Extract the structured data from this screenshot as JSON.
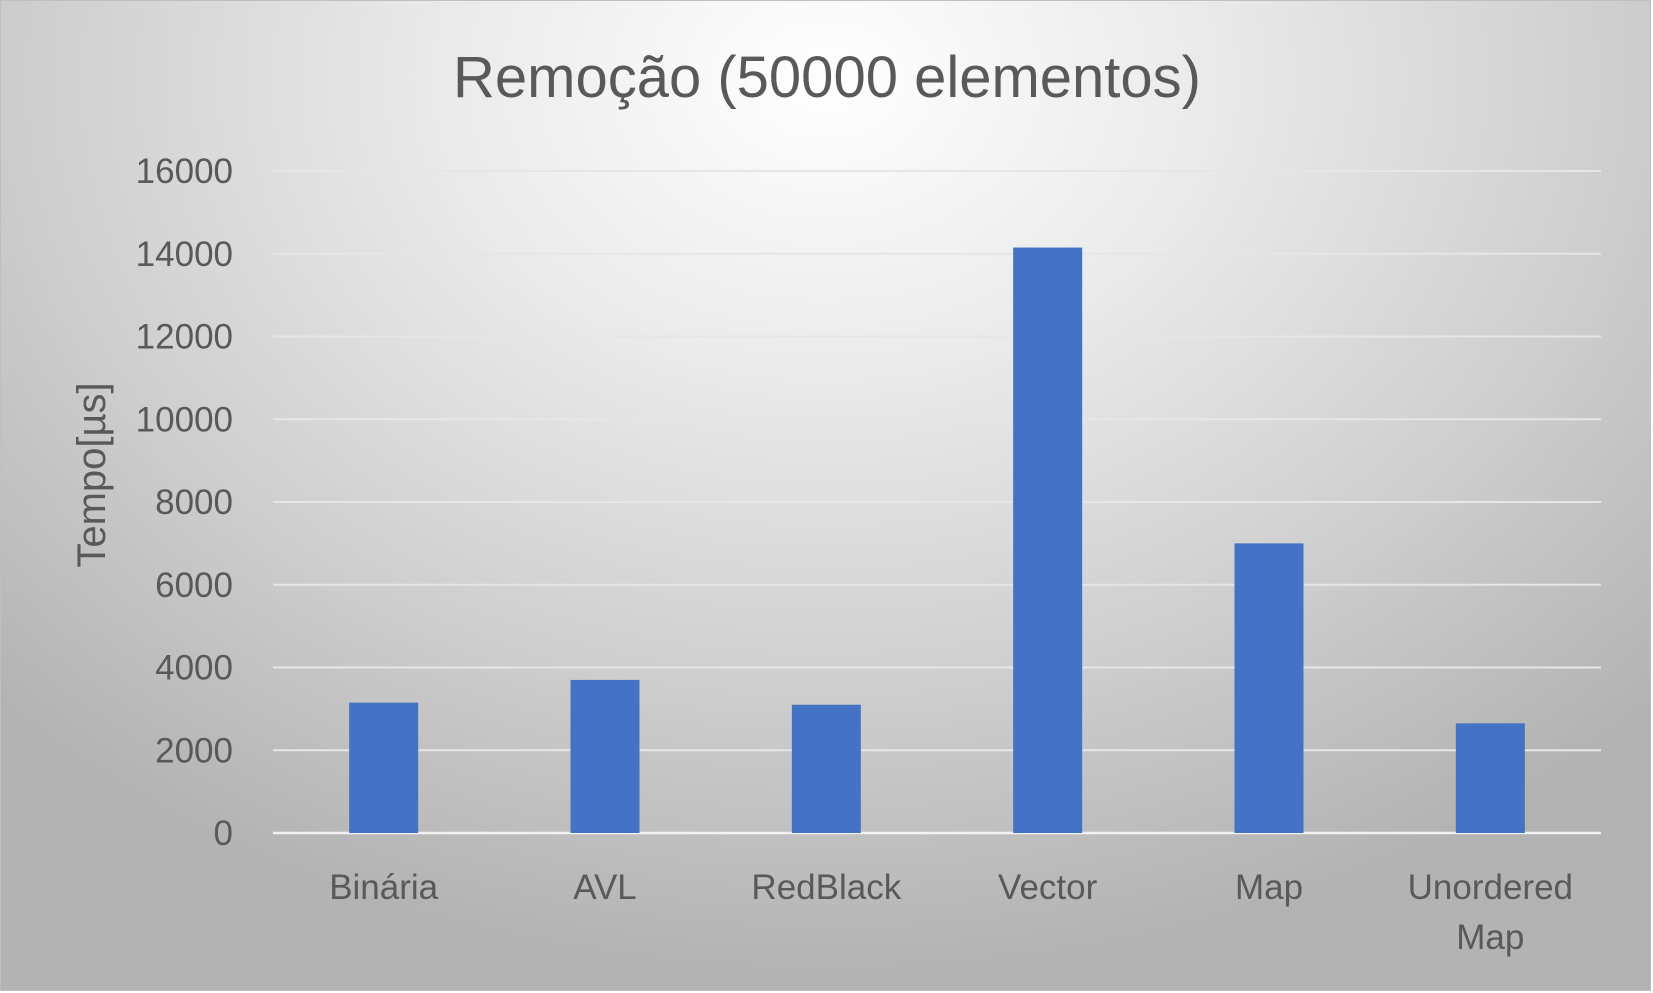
{
  "chart_data": {
    "type": "bar",
    "title": "Remoção (50000 elementos)",
    "xlabel": "",
    "ylabel": "Tempo[µs]",
    "categories": [
      "Binária",
      "AVL",
      "RedBlack",
      "Vector",
      "Map",
      "Unordered Map"
    ],
    "values": [
      3150,
      3700,
      3100,
      14150,
      7000,
      2650
    ],
    "ylim": [
      0,
      16000
    ],
    "yticks": [
      0,
      2000,
      4000,
      6000,
      8000,
      10000,
      12000,
      14000,
      16000
    ],
    "grid": true,
    "legend": "none",
    "bar_color": "#4472C4"
  }
}
